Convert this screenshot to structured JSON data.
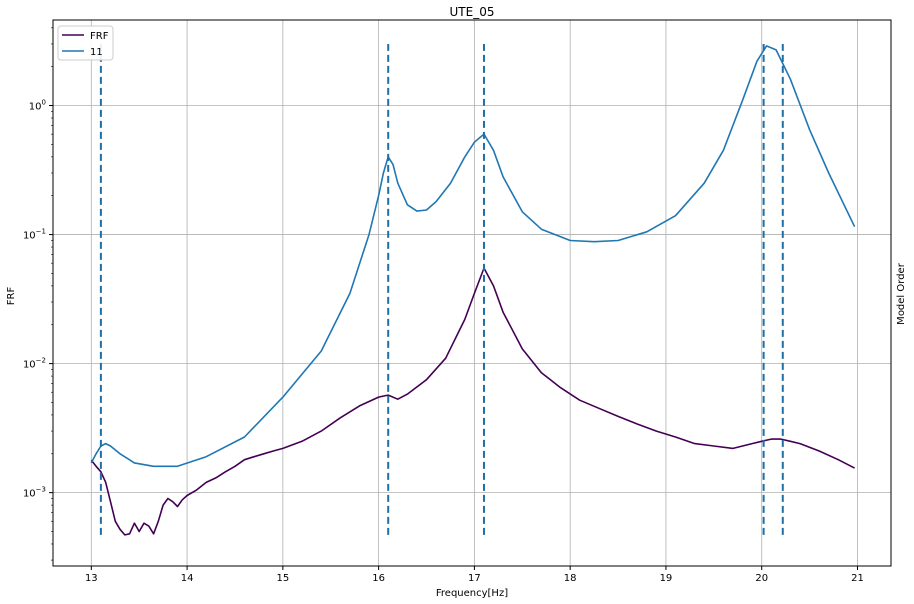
{
  "chart_data": {
    "type": "line",
    "title": "UTE_05",
    "xlabel": "Frequency[Hz]",
    "ylabel": "FRF",
    "y2label": "Model Order",
    "y_scale": "log",
    "xlim": [
      12.6,
      21.35
    ],
    "ylim": [
      0.00027,
      4.6
    ],
    "grid": true,
    "legend_position": "top-left",
    "x_ticks": [
      "13",
      "14",
      "15",
      "16",
      "17",
      "18",
      "19",
      "20",
      "21"
    ],
    "y_ticks": [
      {
        "value": 0.001,
        "base": "10",
        "exp": "−3"
      },
      {
        "value": 0.01,
        "base": "10",
        "exp": "−2"
      },
      {
        "value": 0.1,
        "base": "10",
        "exp": "−1"
      },
      {
        "value": 1,
        "base": "10",
        "exp": "0"
      }
    ],
    "colors": {
      "frf": "#440154",
      "model": "#1f77b4",
      "stable": "#1f6fa6"
    },
    "series": [
      {
        "name": "FRF",
        "color": "#440154",
        "x": [
          13.0,
          13.05,
          13.1,
          13.15,
          13.2,
          13.25,
          13.3,
          13.35,
          13.4,
          13.45,
          13.5,
          13.55,
          13.6,
          13.65,
          13.7,
          13.75,
          13.8,
          13.85,
          13.9,
          13.95,
          14.0,
          14.1,
          14.2,
          14.3,
          14.4,
          14.5,
          14.6,
          14.7,
          14.8,
          14.9,
          15.0,
          15.2,
          15.4,
          15.6,
          15.8,
          16.0,
          16.1,
          16.2,
          16.3,
          16.5,
          16.7,
          16.9,
          17.0,
          17.1,
          17.2,
          17.3,
          17.5,
          17.7,
          17.9,
          18.1,
          18.3,
          18.5,
          18.7,
          18.9,
          19.1,
          19.3,
          19.5,
          19.7,
          19.9,
          20.0,
          20.1,
          20.2,
          20.3,
          20.4,
          20.6,
          20.8,
          20.97
        ],
        "values": [
          0.00178,
          0.0016,
          0.00145,
          0.0012,
          0.00085,
          0.0006,
          0.00052,
          0.00047,
          0.00048,
          0.00058,
          0.0005,
          0.00058,
          0.00055,
          0.00048,
          0.0006,
          0.0008,
          0.0009,
          0.00085,
          0.00078,
          0.00088,
          0.00095,
          0.00105,
          0.0012,
          0.0013,
          0.00145,
          0.0016,
          0.0018,
          0.0019,
          0.002,
          0.0021,
          0.0022,
          0.0025,
          0.003,
          0.0038,
          0.0047,
          0.0055,
          0.0057,
          0.0053,
          0.0058,
          0.0075,
          0.011,
          0.022,
          0.035,
          0.055,
          0.04,
          0.025,
          0.013,
          0.0085,
          0.0065,
          0.0052,
          0.0045,
          0.0039,
          0.0034,
          0.003,
          0.0027,
          0.0024,
          0.0023,
          0.0022,
          0.0024,
          0.0025,
          0.0026,
          0.0026,
          0.0025,
          0.0024,
          0.0021,
          0.0018,
          0.00155
        ]
      },
      {
        "name": "11",
        "color": "#1f77b4",
        "x": [
          13.0,
          13.05,
          13.1,
          13.15,
          13.2,
          13.3,
          13.45,
          13.65,
          13.9,
          14.2,
          14.6,
          15.0,
          15.4,
          15.7,
          15.9,
          16.0,
          16.05,
          16.1,
          16.15,
          16.2,
          16.3,
          16.4,
          16.5,
          16.6,
          16.75,
          16.9,
          17.0,
          17.1,
          17.2,
          17.3,
          17.5,
          17.7,
          18.0,
          18.25,
          18.5,
          18.8,
          19.1,
          19.4,
          19.6,
          19.8,
          19.95,
          20.05,
          20.15,
          20.3,
          20.5,
          20.7,
          20.97
        ],
        "values": [
          0.0017,
          0.002,
          0.0023,
          0.0024,
          0.0023,
          0.002,
          0.0017,
          0.0016,
          0.0016,
          0.0019,
          0.0027,
          0.0055,
          0.0125,
          0.035,
          0.1,
          0.2,
          0.3,
          0.4,
          0.35,
          0.25,
          0.17,
          0.152,
          0.155,
          0.18,
          0.25,
          0.4,
          0.52,
          0.6,
          0.45,
          0.28,
          0.15,
          0.11,
          0.09,
          0.088,
          0.09,
          0.105,
          0.14,
          0.25,
          0.45,
          1.1,
          2.2,
          2.9,
          2.7,
          1.6,
          0.65,
          0.3,
          0.115
        ]
      }
    ],
    "stable_poles": [
      13.1,
      16.1,
      17.1,
      20.02,
      20.22
    ],
    "stable_pole_range": [
      0.00047,
      3.0
    ]
  }
}
